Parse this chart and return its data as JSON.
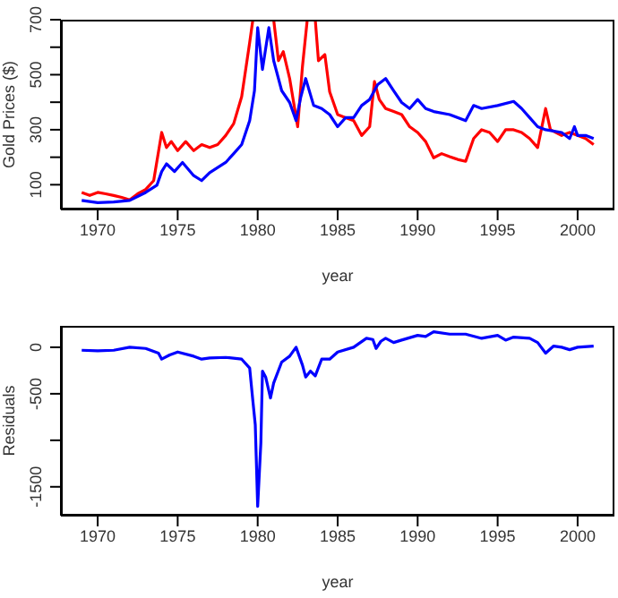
{
  "chart_data": [
    {
      "type": "line",
      "xlabel": "year",
      "ylabel": "Gold Prices ($)",
      "marker": "none",
      "xlim": [
        1967.7,
        2002.3
      ],
      "xticks": [
        1970,
        1975,
        1980,
        1985,
        1990,
        1995,
        2000
      ],
      "ylim": [
        10,
        700
      ],
      "yticks": [
        100,
        {
          "value": 200,
          "label": null
        },
        300,
        {
          "value": 400,
          "label": null
        },
        500,
        {
          "value": 600,
          "label": null
        },
        700
      ],
      "series": [
        {
          "color": "#ff0000",
          "x": [
            1969,
            1969.5,
            1970,
            1970.5,
            1971,
            1971.5,
            1972,
            1972.5,
            1973,
            1973.5,
            1974,
            1974.3,
            1974.6,
            1975,
            1975.5,
            1976,
            1976.5,
            1977,
            1977.5,
            1978,
            1978.5,
            1979,
            1979.5,
            1979.7,
            1981,
            1981.3,
            1981.6,
            1982,
            1982.5,
            1982.8,
            1983.1,
            1983.6,
            1983.8,
            1984.2,
            1984.5,
            1985,
            1985.5,
            1986,
            1986.5,
            1987,
            1987.3,
            1987.6,
            1988,
            1988.5,
            1989,
            1989.5,
            1990,
            1990.5,
            1991,
            1991.5,
            1992,
            1992.5,
            1993,
            1993.5,
            1994,
            1994.5,
            1995,
            1995.5,
            1996,
            1996.5,
            1997,
            1997.5,
            1998,
            1998.3,
            1999,
            1999.5,
            2000,
            2000.5,
            2001
          ],
          "values": [
            72,
            61,
            72,
            67,
            61,
            54,
            45,
            67,
            83,
            115,
            290,
            235,
            257,
            224,
            257,
            224,
            246,
            235,
            246,
            279,
            322,
            420,
            617,
            700,
            700,
            551,
            584,
            486,
            311,
            530,
            700,
            700,
            551,
            573,
            438,
            355,
            344,
            333,
            279,
            311,
            475,
            410,
            377,
            366,
            355,
            311,
            290,
            257,
            198,
            213,
            202,
            192,
            185,
            268,
            300,
            290,
            257,
            300,
            300,
            290,
            268,
            235,
            377,
            300,
            279,
            290,
            279,
            268,
            246
          ]
        },
        {
          "color": "#0000ff",
          "x": [
            1969,
            1970,
            1971,
            1972,
            1973,
            1973.7,
            1974,
            1974.3,
            1974.8,
            1975.3,
            1976,
            1976.5,
            1977,
            1978,
            1978.5,
            1979,
            1979.5,
            1979.8,
            1980,
            1980.3,
            1980.7,
            1981,
            1981.5,
            1982,
            1982.4,
            1982.7,
            1983,
            1983.5,
            1984,
            1984.5,
            1985,
            1985.5,
            1986,
            1986.5,
            1987,
            1987.5,
            1988,
            1988.5,
            1989,
            1989.5,
            1990,
            1990.5,
            1991,
            1992,
            1993,
            1993.5,
            1994,
            1995,
            1996,
            1996.5,
            1997,
            1997.5,
            1998,
            1999,
            1999.5,
            1999.8,
            2000,
            2000.5,
            2001
          ],
          "values": [
            43,
            35,
            37,
            43,
            72,
            98,
            148,
            176,
            148,
            181,
            133,
            115,
            144,
            181,
            213,
            246,
            333,
            442,
            671,
            519,
            671,
            551,
            442,
            399,
            333,
            420,
            486,
            388,
            377,
            355,
            311,
            344,
            344,
            388,
            410,
            464,
            486,
            442,
            399,
            377,
            410,
            377,
            366,
            355,
            333,
            388,
            377,
            388,
            403,
            377,
            344,
            311,
            300,
            290,
            268,
            311,
            279,
            279,
            268
          ]
        }
      ]
    },
    {
      "type": "line",
      "xlabel": "year",
      "ylabel": "Residuals",
      "marker": "none",
      "xlim": [
        1967.7,
        2002.3
      ],
      "xticks": [
        1970,
        1975,
        1980,
        1985,
        1990,
        1995,
        2000
      ],
      "ylim": [
        -1810,
        230
      ],
      "yticks": [
        -1500,
        {
          "value": -1000,
          "label": null
        },
        -500,
        0
      ],
      "series": [
        {
          "color": "#0000ff",
          "x": [
            1969,
            1970,
            1971,
            1972,
            1973,
            1973.8,
            1974,
            1974.5,
            1975,
            1976,
            1976.5,
            1977,
            1978,
            1979,
            1979.5,
            1979.7,
            1979.85,
            1980,
            1980.2,
            1980.3,
            1980.5,
            1980.8,
            1981,
            1981.5,
            1982,
            1982.4,
            1982.8,
            1983,
            1983.3,
            1983.6,
            1984,
            1984.5,
            1985,
            1986,
            1986.8,
            1987.2,
            1987.4,
            1987.7,
            1988,
            1988.5,
            1989,
            1990,
            1990.5,
            1991,
            1992,
            1993,
            1994,
            1995,
            1995.5,
            1996,
            1997,
            1997.5,
            1998,
            1998.5,
            1999,
            1999.5,
            2000,
            2001
          ],
          "values": [
            -32,
            -38,
            -32,
            0,
            -13,
            -64,
            -128,
            -83,
            -51,
            -96,
            -128,
            -115,
            -109,
            -128,
            -224,
            -577,
            -833,
            -1710,
            -1026,
            -256,
            -320,
            -545,
            -385,
            -160,
            -96,
            0,
            -192,
            -320,
            -256,
            -308,
            -128,
            -128,
            -51,
            0,
            96,
            83,
            -13,
            64,
            96,
            51,
            77,
            128,
            115,
            167,
            141,
            141,
            96,
            128,
            77,
            109,
            96,
            51,
            -64,
            13,
            0,
            -26,
            0,
            13
          ]
        }
      ]
    }
  ]
}
